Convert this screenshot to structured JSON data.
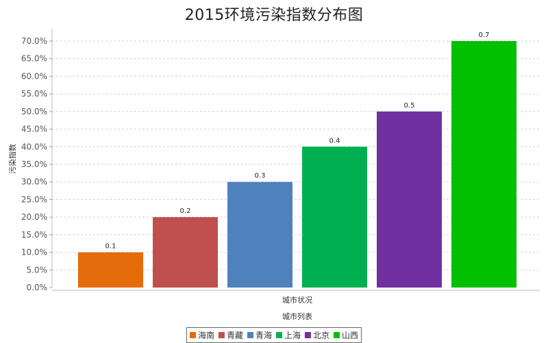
{
  "chart_data": {
    "type": "bar",
    "title": "2015环境污染指数分布图",
    "xlabel": "城市状况",
    "category_axis_title": "城市列表",
    "ylabel": "污染指数",
    "ylim": [
      0,
      0.7
    ],
    "y_tick_step": 0.05,
    "y_tick_format": "percent",
    "grid": true,
    "legend_position": "bottom",
    "series": [
      {
        "name": "海南",
        "value": 0.1,
        "label": "0.1",
        "color": "#e46c0a"
      },
      {
        "name": "青藏",
        "value": 0.2,
        "label": "0.2",
        "color": "#c0504d"
      },
      {
        "name": "青海",
        "value": 0.3,
        "label": "0.3",
        "color": "#4f81bd"
      },
      {
        "name": "上海",
        "value": 0.4,
        "label": "0.4",
        "color": "#00b050"
      },
      {
        "name": "北京",
        "value": 0.5,
        "label": "0.5",
        "color": "#7030a0"
      },
      {
        "name": "山西",
        "value": 0.7,
        "label": "0.7",
        "color": "#00c000"
      }
    ]
  }
}
